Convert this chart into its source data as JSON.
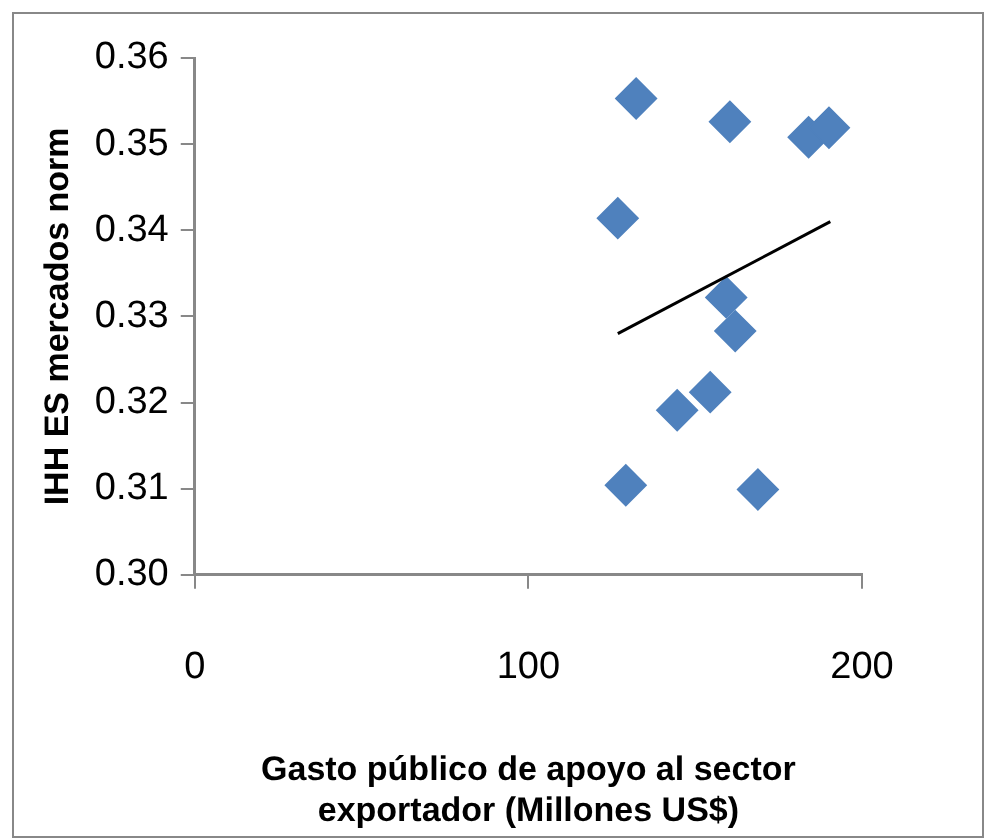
{
  "chart_data": {
    "type": "scatter",
    "xlabel": "Gasto público de apoyo al sector exportador (Millones US$)",
    "ylabel": "IHH ES mercados norm",
    "xlim": [
      0,
      200
    ],
    "xticks": [
      0,
      100,
      200
    ],
    "ylim": [
      0.3,
      0.36
    ],
    "yticks": [
      {
        "value": 0.3,
        "label": "0.30"
      },
      {
        "value": 0.31,
        "label": "0.31"
      },
      {
        "value": 0.32,
        "label": "0.32"
      },
      {
        "value": 0.33,
        "label": "0.33"
      },
      {
        "value": 0.34,
        "label": "0.34"
      },
      {
        "value": 0.35,
        "label": "0.35"
      },
      {
        "value": 0.36,
        "label": "0.36"
      }
    ],
    "grid": false,
    "legend": false,
    "series": [
      {
        "color": "#4f81bd",
        "marker": "diamond",
        "x": [
          132.3,
          160.4,
          184,
          190.1,
          126.8,
          159.3,
          162,
          154.5,
          144.6,
          129.2,
          168.8
        ],
        "values": [
          0.3553,
          0.3526,
          0.3508,
          0.3519,
          0.3414,
          0.3322,
          0.3283,
          0.3212,
          0.3191,
          0.3104,
          0.3099
        ]
      },
      {
        "type": "line",
        "marker": "none",
        "color": "#000000",
        "x": [
          126.8,
          190.5
        ],
        "values": [
          0.328,
          0.341
        ]
      }
    ]
  }
}
